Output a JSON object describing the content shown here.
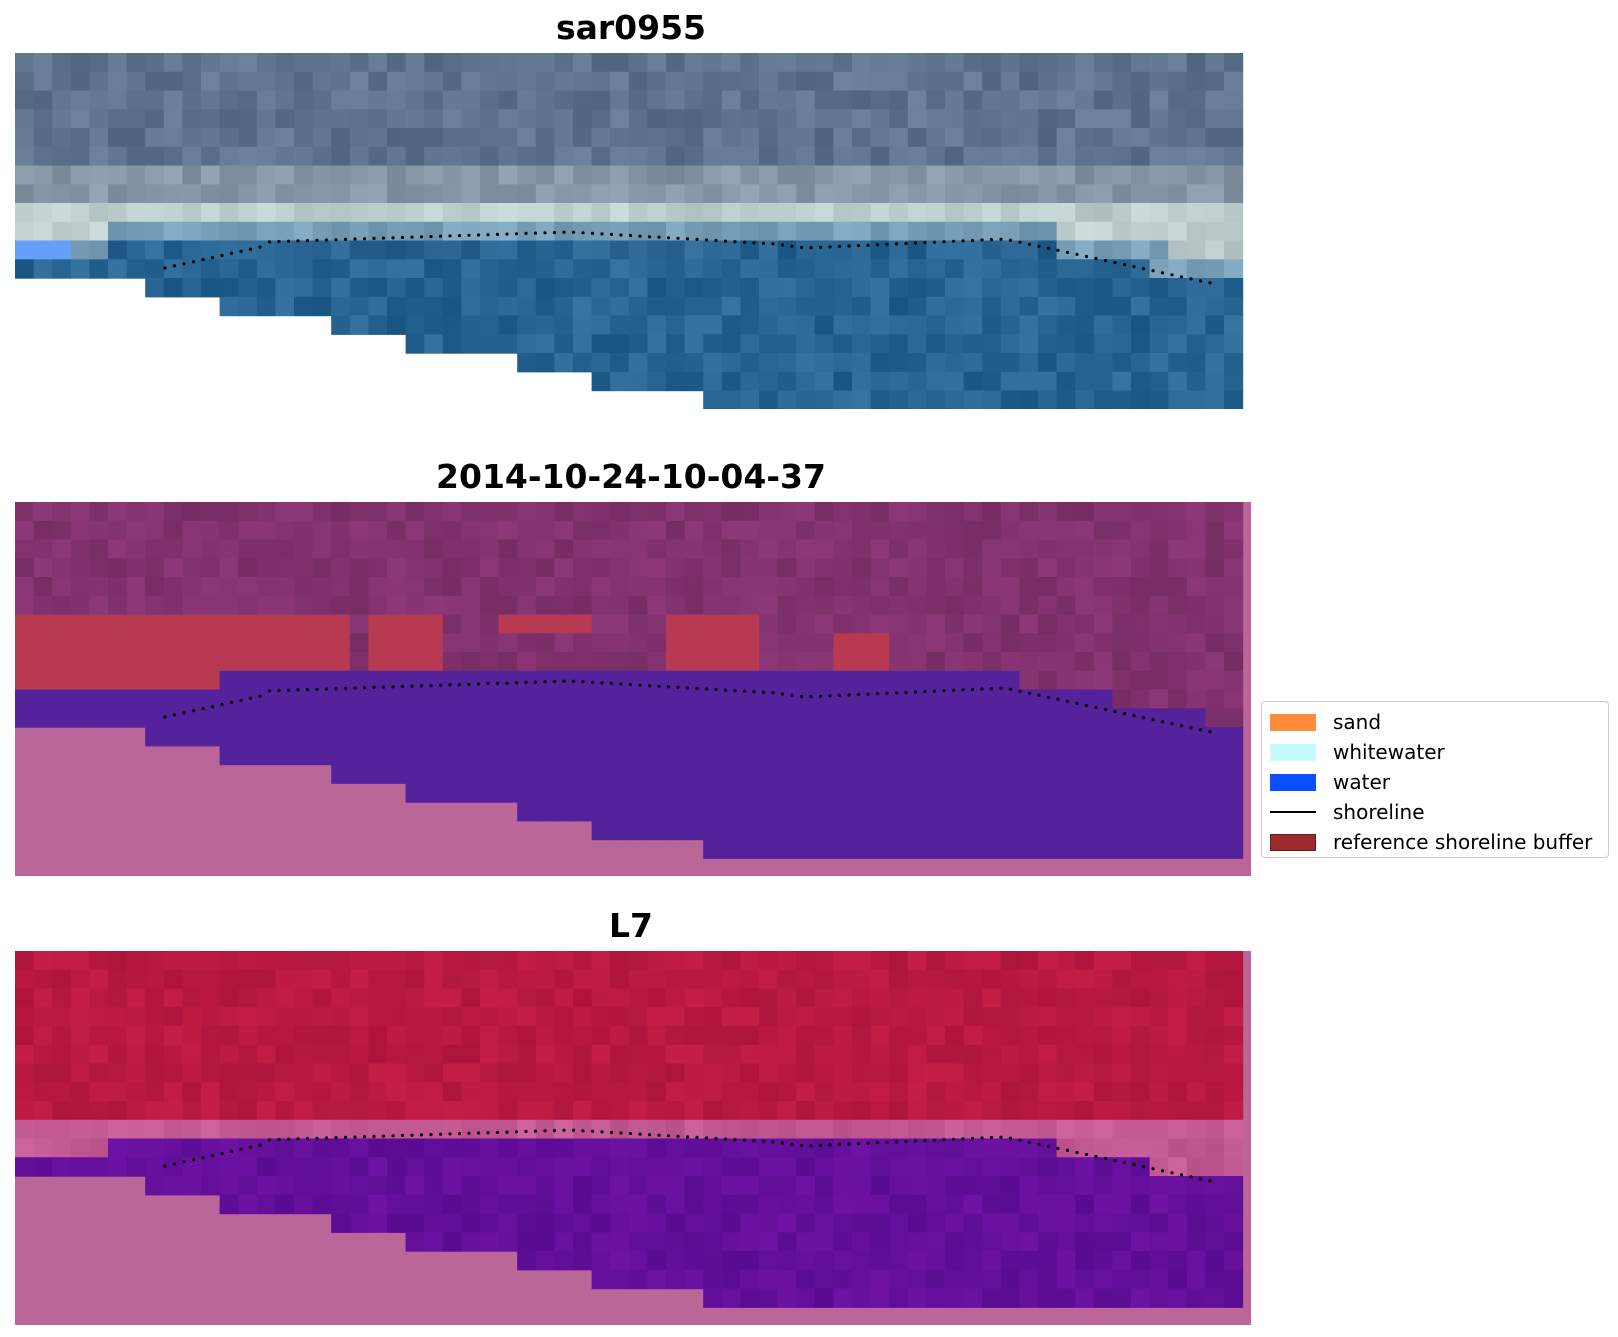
{
  "panels": [
    {
      "title": "sar0955",
      "kind": "rgb"
    },
    {
      "title": "2014-10-24-10-04-37",
      "kind": "classified"
    },
    {
      "title": "L7",
      "kind": "index"
    }
  ],
  "legend": {
    "items": [
      {
        "label": "sand",
        "type": "patch",
        "color": "#ff8c3a"
      },
      {
        "label": "whitewater",
        "type": "patch",
        "color": "#c8fcfc"
      },
      {
        "label": "water",
        "type": "patch",
        "color": "#0a50ff"
      },
      {
        "label": "shoreline",
        "type": "line",
        "color": "#000000"
      },
      {
        "label": "reference shoreline buffer",
        "type": "patch",
        "color": "#9b2b2f"
      }
    ]
  },
  "colors": {
    "nodata": "#bb6699",
    "buffer": "#b83a52",
    "classified_water": "#54239c",
    "shoreline_dots": "#000000"
  }
}
